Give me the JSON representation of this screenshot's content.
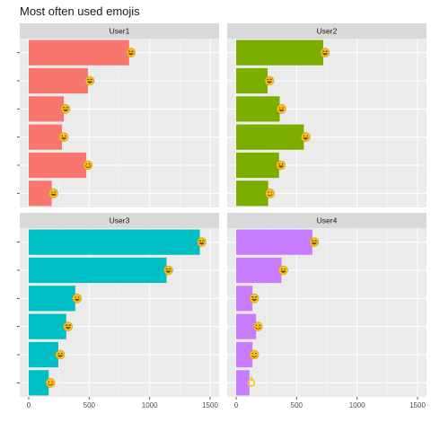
{
  "chart_data": {
    "type": "bar",
    "title": "Most often used emojis",
    "orientation": "horizontal",
    "facets": [
      "User1",
      "User2",
      "User3",
      "User4"
    ],
    "xlim": [
      0,
      1500
    ],
    "x_ticks": [
      0,
      500,
      1000,
      1500
    ],
    "grid": true,
    "legend": "none",
    "series": [
      {
        "name": "User1",
        "color": "#F8766D",
        "values": [
          830,
          490,
          290,
          275,
          475,
          190
        ],
        "emojis": [
          "rofl",
          "joy",
          "grin-sweat",
          "grin",
          "blush",
          "sweat-smile"
        ]
      },
      {
        "name": "User2",
        "color": "#7CAE00",
        "values": [
          720,
          260,
          360,
          560,
          355,
          265
        ],
        "emojis": [
          "joy",
          "grin-sweat",
          "wink",
          "grin",
          "sweat-smile",
          "smile"
        ]
      },
      {
        "name": "User3",
        "color": "#00BFC4",
        "values": [
          1415,
          1140,
          385,
          310,
          245,
          165
        ],
        "emojis": [
          "rofl",
          "joy",
          "grin",
          "grin-sweat",
          "sweat-smile",
          "blush"
        ]
      },
      {
        "name": "User4",
        "color": "#C77CFF",
        "values": [
          630,
          375,
          135,
          165,
          135,
          110
        ],
        "emojis": [
          "joy",
          "grin",
          "grin-sweat",
          "blush",
          "smile",
          "ok-hand"
        ]
      }
    ]
  }
}
